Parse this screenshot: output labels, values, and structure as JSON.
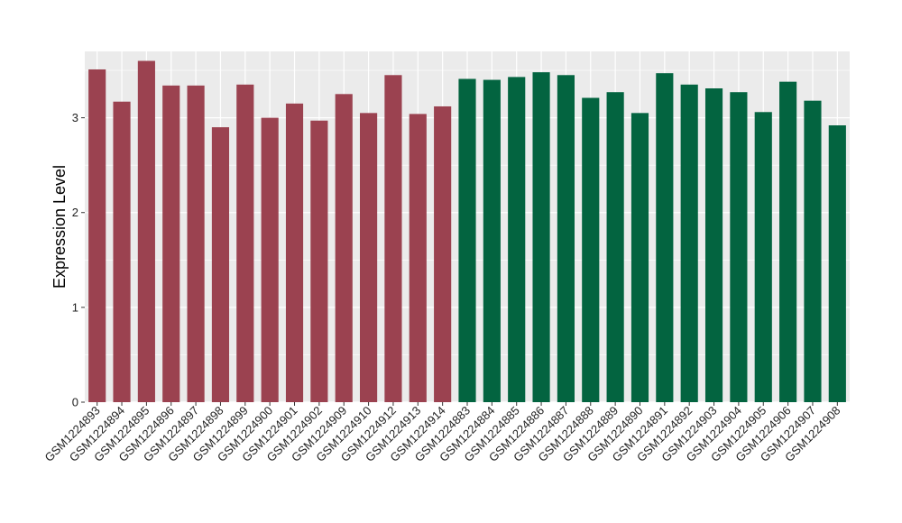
{
  "chart_data": {
    "type": "bar",
    "title": "",
    "xlabel": "",
    "ylabel": "Expression Level",
    "ylim": [
      0,
      3.7
    ],
    "yticks": [
      0,
      1,
      2,
      3
    ],
    "grid": true,
    "background": "#ebebeb",
    "gridline_color": "#ffffff",
    "colors": {
      "group1": "#9b4250",
      "group2": "#036440"
    },
    "categories": [
      "GSM1224893",
      "GSM1224894",
      "GSM1224895",
      "GSM1224896",
      "GSM1224897",
      "GSM1224898",
      "GSM1224899",
      "GSM1224900",
      "GSM1224901",
      "GSM1224902",
      "GSM1224909",
      "GSM1224910",
      "GSM1224912",
      "GSM1224913",
      "GSM1224914",
      "GSM1224883",
      "GSM1224884",
      "GSM1224885",
      "GSM1224886",
      "GSM1224887",
      "GSM1224888",
      "GSM1224889",
      "GSM1224890",
      "GSM1224891",
      "GSM1224892",
      "GSM1224903",
      "GSM1224904",
      "GSM1224905",
      "GSM1224906",
      "GSM1224907",
      "GSM1224908"
    ],
    "values": [
      3.51,
      3.17,
      3.6,
      3.34,
      3.34,
      2.9,
      3.35,
      3.0,
      3.15,
      2.97,
      3.25,
      3.05,
      3.45,
      3.04,
      3.12,
      3.41,
      3.4,
      3.43,
      3.48,
      3.45,
      3.21,
      3.27,
      3.05,
      3.47,
      3.35,
      3.31,
      3.27,
      3.06,
      3.38,
      3.18,
      2.92
    ],
    "groups": [
      "group1",
      "group1",
      "group1",
      "group1",
      "group1",
      "group1",
      "group1",
      "group1",
      "group1",
      "group1",
      "group1",
      "group1",
      "group1",
      "group1",
      "group1",
      "group2",
      "group2",
      "group2",
      "group2",
      "group2",
      "group2",
      "group2",
      "group2",
      "group2",
      "group2",
      "group2",
      "group2",
      "group2",
      "group2",
      "group2",
      "group2"
    ]
  }
}
